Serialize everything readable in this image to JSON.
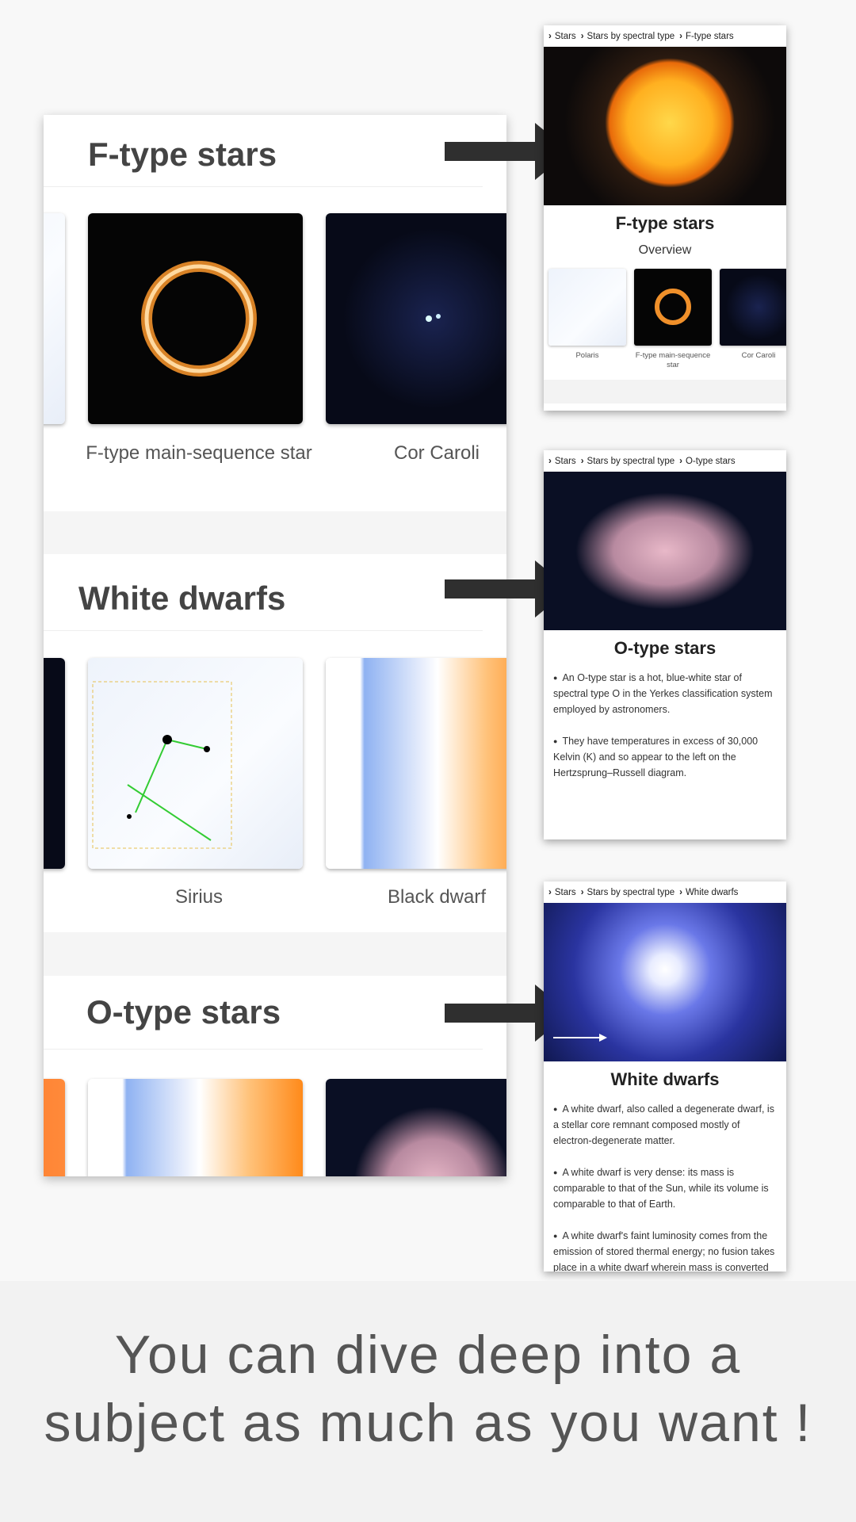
{
  "left_panel": {
    "sections": [
      {
        "title": "F-type stars",
        "items": [
          "F-type main-sequence star",
          "Cor Caroli"
        ]
      },
      {
        "title": "White dwarfs",
        "items": [
          "Sirius",
          "Black dwarf"
        ]
      },
      {
        "title": "O-type stars",
        "items": []
      }
    ]
  },
  "screens": [
    {
      "breadcrumb": [
        "Stars",
        "Stars by spectral type",
        "F-type stars"
      ],
      "title": "F-type stars",
      "subtitle": "Overview",
      "thumbs": [
        "Polaris",
        "F-type main-sequence star",
        "Cor Caroli"
      ],
      "bullets": []
    },
    {
      "breadcrumb": [
        "Stars",
        "Stars by spectral type",
        "O-type stars"
      ],
      "title": "O-type stars",
      "thumbs": [],
      "bullets": [
        "An O-type star is a hot, blue-white star of spectral type O in the Yerkes classification system employed by astronomers.",
        "They have temperatures in excess of 30,000 Kelvin (K) and so appear to the left on the Hertzsprung–Russell diagram."
      ]
    },
    {
      "breadcrumb": [
        "Stars",
        "Stars by spectral type",
        "White dwarfs"
      ],
      "title": "White dwarfs",
      "thumbs": [],
      "bullets": [
        "A white dwarf, also called a degenerate dwarf, is a stellar core remnant composed mostly of electron-degenerate matter.",
        "A white dwarf is very dense: its mass is comparable to that of the Sun, while its volume is comparable to that of Earth.",
        "A white dwarf's faint luminosity comes from the emission of stored thermal energy; no fusion takes place in a white dwarf wherein mass is converted to"
      ]
    }
  ],
  "caption": "You can dive deep into a subject as much as you want !"
}
